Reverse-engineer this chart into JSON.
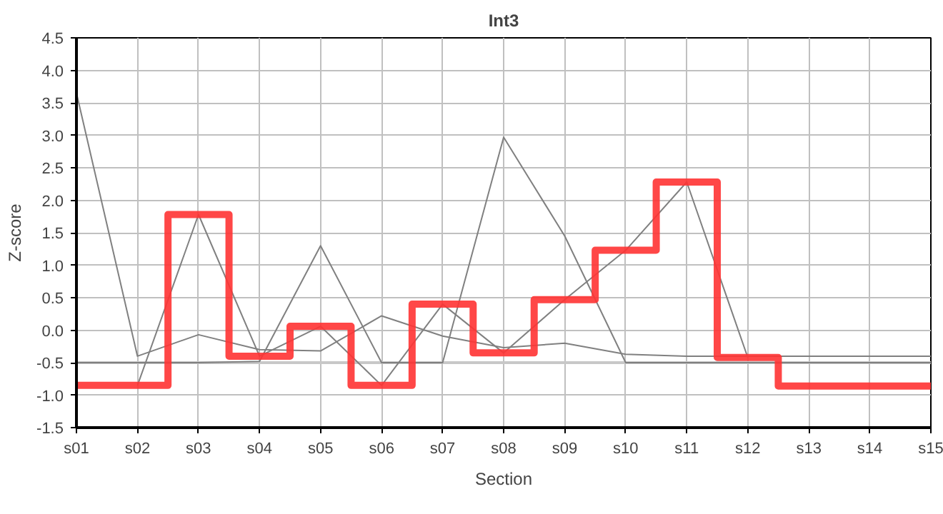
{
  "chart_data": {
    "type": "line",
    "title": "Int3",
    "xlabel": "Section",
    "ylabel": "Z-score",
    "categories": [
      "s01",
      "s02",
      "s03",
      "s04",
      "s05",
      "s06",
      "s07",
      "s08",
      "s09",
      "s10",
      "s11",
      "s12",
      "s13",
      "s14",
      "s15"
    ],
    "series": [
      {
        "color": "#c8c8c8",
        "values": [
          -0.5,
          -0.5,
          -0.5,
          -0.5,
          -0.5,
          -0.5,
          -0.5,
          -0.5,
          -0.5,
          -0.5,
          -0.5,
          -0.5,
          -0.5,
          -0.5,
          -0.5
        ]
      },
      {
        "color": "#808080",
        "values": [
          3.65,
          -0.4,
          -0.07,
          -0.3,
          -0.32,
          0.22,
          -0.09,
          -0.27,
          -0.2,
          -0.37,
          -0.4,
          -0.4,
          -0.4,
          -0.4,
          -0.4
        ]
      },
      {
        "color": "#808080",
        "values": [
          -0.5,
          -0.5,
          -0.5,
          -0.48,
          1.3,
          -0.5,
          -0.5,
          2.97,
          1.45,
          -0.5,
          -0.5,
          -0.5,
          -0.5,
          -0.5,
          -0.5
        ]
      },
      {
        "color": "#808080",
        "values": [
          null,
          -0.85,
          1.78,
          -0.4,
          0.06,
          -0.85,
          0.4,
          -0.35,
          0.47,
          1.23,
          2.28,
          -0.42,
          null,
          null,
          null
        ]
      },
      {
        "type": "step",
        "color": "#ff3333",
        "values": [
          -0.85,
          -0.85,
          1.78,
          -0.4,
          0.06,
          -0.85,
          0.4,
          -0.35,
          0.47,
          1.23,
          2.28,
          -0.42,
          -0.86,
          -0.86,
          -0.86
        ]
      }
    ],
    "ylim": [
      -1.5,
      4.5
    ],
    "yticks": [
      {
        "value": -1.5,
        "label": "-1.5"
      },
      {
        "value": -1,
        "label": "-1.0"
      },
      {
        "value": -0.5,
        "label": "-0.5"
      },
      {
        "value": 0,
        "label": "0.0"
      },
      {
        "value": 0.5,
        "label": "0.5"
      },
      {
        "value": 1,
        "label": "1.0"
      },
      {
        "value": 1.5,
        "label": "1.5"
      },
      {
        "value": 2,
        "label": "2.0"
      },
      {
        "value": 2.5,
        "label": "2.5"
      },
      {
        "value": 3,
        "label": "3.0"
      },
      {
        "value": 3.5,
        "label": "3.5"
      },
      {
        "value": 4,
        "label": "4.0"
      },
      {
        "value": 4.5,
        "label": "4.5"
      }
    ],
    "grid": true
  }
}
